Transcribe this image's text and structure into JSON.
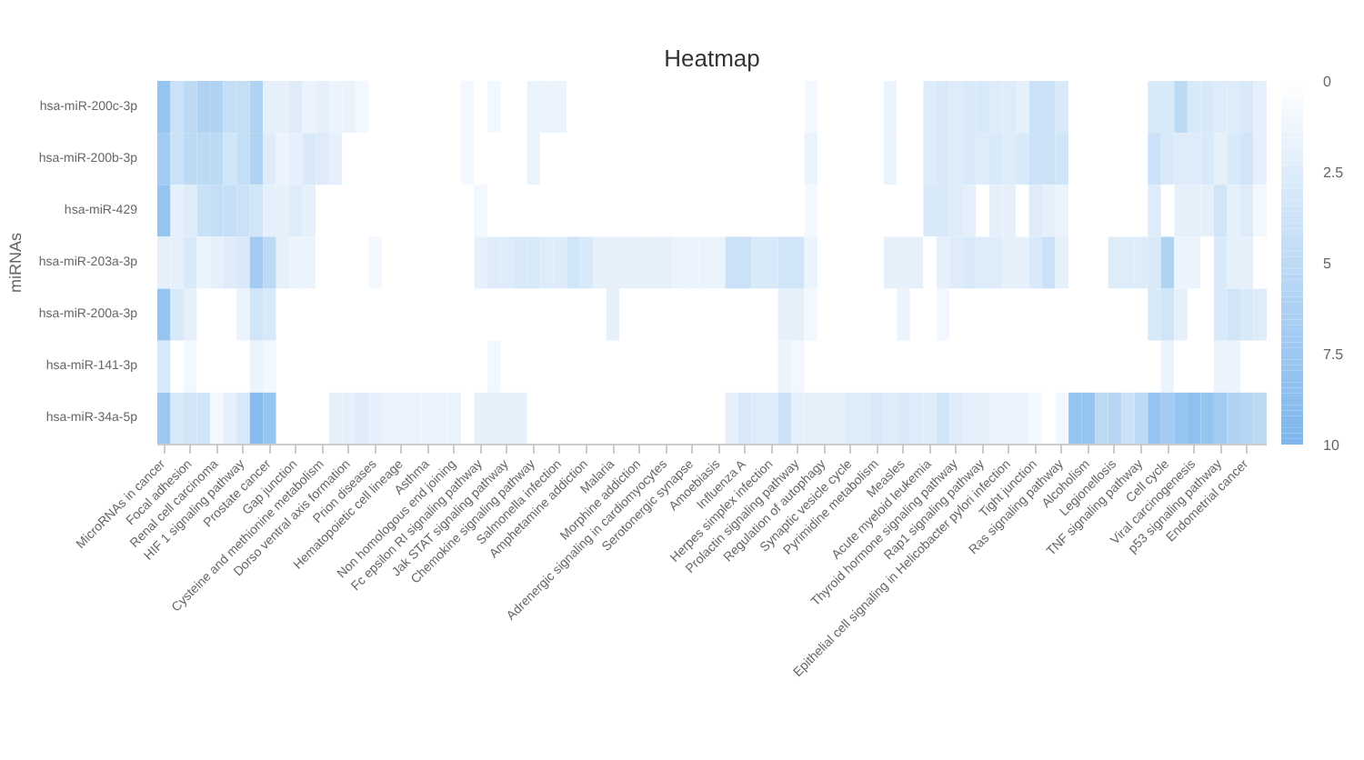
{
  "chart_data": {
    "type": "heatmap",
    "title": "Heatmap",
    "ylabel": "miRNAs",
    "categories": [
      "MicroRNAs in cancer",
      null,
      "Focal adhesion",
      null,
      "Renal cell carcinoma",
      null,
      "HIF 1 signaling pathway",
      null,
      "Prostate cancer",
      null,
      "Gap junction",
      null,
      "Cysteine and methionine metabolism",
      null,
      "Dorso ventral axis formation",
      null,
      "Prion diseases",
      null,
      "Hematopoietic cell lineage",
      null,
      "Asthma",
      null,
      "Non homologous end joining",
      null,
      "Fc epsilon RI signaling pathway",
      null,
      "Jak STAT signaling pathway",
      null,
      "Chemokine signaling pathway",
      null,
      "Salmonella infection",
      null,
      "Amphetamine addiction",
      null,
      "Malaria",
      null,
      "Morphine addiction",
      null,
      "Adrenergic signaling in cardiomyocytes",
      null,
      "Serotonergic synapse",
      null,
      "Amoebiasis",
      null,
      "Influenza A",
      null,
      "Herpes simplex infection",
      null,
      "Prolactin signaling pathway",
      null,
      "Regulation of autophagy",
      null,
      "Synaptic vesicle cycle",
      null,
      "Pyrimidine metabolism",
      null,
      "Measles",
      null,
      "Acute myeloid leukemia",
      null,
      "Thyroid hormone signaling pathway",
      null,
      "Rap1 signaling pathway",
      null,
      "Epithelial cell signaling in Helicobacter pylori infection",
      null,
      "Tight junction",
      null,
      "Ras signaling pathway",
      null,
      "Alcoholism",
      null,
      "Legionellosis",
      null,
      "TNF signaling pathway",
      null,
      "Cell cycle",
      null,
      "Viral carcinogenesis",
      null,
      "p53 signaling pathway",
      null,
      "Endometrial cancer",
      null
    ],
    "y_categories": [
      "hsa-miR-200c-3p",
      "hsa-miR-200b-3p",
      "hsa-miR-429",
      "hsa-miR-203a-3p",
      "hsa-miR-200a-3p",
      "hsa-miR-141-3p",
      "hsa-miR-34a-5p"
    ],
    "colors": [
      "#ffffff",
      "#7cb5ec"
    ],
    "clim": [
      0,
      10
    ],
    "cticks": [
      0,
      2.5,
      5,
      7.5,
      10
    ],
    "cells": [
      [
        8,
        4,
        5,
        6,
        6,
        4.5,
        4.5,
        6,
        2,
        2,
        2.5,
        1.5,
        2,
        1.5,
        1.5,
        1,
        0,
        0,
        0,
        0,
        0,
        0,
        0,
        1,
        0,
        1,
        0,
        0,
        1.5,
        1.5,
        1.5,
        0,
        0,
        0,
        0,
        0,
        0,
        0,
        0,
        0,
        0,
        0,
        0,
        0,
        0,
        0,
        0,
        0,
        0,
        1,
        0,
        0,
        0,
        0,
        0,
        1.5,
        0,
        0,
        2.5,
        3,
        2.5,
        3,
        3,
        2.5,
        2.5,
        2,
        4,
        4,
        3,
        0,
        0,
        0,
        0,
        0,
        0,
        3,
        3,
        5,
        3,
        3,
        2.5,
        2.5,
        3,
        2
      ],
      [
        7,
        4,
        5,
        5,
        5,
        3.5,
        4.5,
        6,
        2.5,
        1.5,
        2,
        3,
        2.5,
        2,
        0,
        0,
        0,
        0,
        0,
        0,
        0,
        0,
        0,
        1,
        0,
        0,
        0,
        0,
        1.5,
        0,
        0,
        0,
        0,
        0,
        0,
        0,
        0,
        0,
        0,
        0,
        0,
        0,
        0,
        0,
        0,
        0,
        0,
        0,
        0,
        1.5,
        0,
        0,
        0,
        0,
        0,
        1.5,
        0,
        0,
        2.5,
        3,
        2.5,
        3,
        2.5,
        3,
        2.5,
        3,
        4,
        4,
        3.5,
        0,
        0,
        0,
        0,
        0,
        0,
        4,
        3,
        2.5,
        2.5,
        3,
        2,
        3,
        3.5,
        2
      ],
      [
        8,
        2,
        2.5,
        4,
        4.5,
        4.5,
        4,
        3.5,
        2,
        2,
        2.5,
        2,
        0,
        0,
        0,
        0,
        0,
        0,
        0,
        0,
        0,
        0,
        0,
        0,
        1,
        0,
        0,
        0,
        0,
        0,
        0,
        0,
        0,
        0,
        0,
        0,
        0,
        0,
        0,
        0,
        0,
        0,
        0,
        0,
        0,
        0,
        0,
        0,
        0,
        1,
        0,
        0,
        0,
        0,
        0,
        0,
        0,
        0,
        3,
        3,
        2.5,
        2,
        0,
        2,
        2,
        0,
        2.5,
        2,
        1.5,
        0,
        0,
        0,
        0,
        0,
        0,
        2.5,
        0,
        2,
        2,
        2,
        3.5,
        2,
        2.5,
        1
      ],
      [
        2,
        2,
        3,
        1.5,
        2,
        2.5,
        3,
        7,
        5,
        2,
        1.5,
        1.5,
        0,
        0,
        0,
        0,
        1,
        0,
        0,
        0,
        0,
        0,
        0,
        0,
        2,
        2.5,
        2.5,
        3,
        3,
        2.5,
        2.5,
        3.5,
        3,
        2,
        2,
        2,
        2,
        2,
        2,
        1.5,
        1.5,
        1.5,
        1.5,
        4,
        4,
        3,
        3,
        3.5,
        3.5,
        1.5,
        0,
        0,
        0,
        0,
        0,
        2,
        2,
        2,
        0,
        2,
        2.5,
        3,
        2.5,
        2.5,
        2,
        2,
        3,
        4,
        2,
        0,
        0,
        0,
        2.5,
        2.5,
        2.5,
        3,
        6,
        1.5,
        1.5,
        0,
        3,
        2,
        2,
        0
      ],
      [
        8,
        3,
        2,
        0,
        0,
        0,
        1.5,
        3.5,
        3,
        0,
        0,
        0,
        0,
        0,
        0,
        0,
        0,
        0,
        0,
        0,
        0,
        0,
        0,
        0,
        0,
        0,
        0,
        0,
        0,
        0,
        0,
        0,
        0,
        0,
        2,
        0,
        0,
        0,
        0,
        0,
        0,
        0,
        0,
        0,
        0,
        0,
        0,
        2,
        2,
        1,
        0,
        0,
        0,
        0,
        0,
        0,
        1.5,
        0,
        0,
        1,
        0,
        0,
        0,
        0,
        0,
        0,
        0,
        0,
        0,
        0,
        0,
        0,
        0,
        0,
        0,
        3,
        3.5,
        2,
        0,
        0,
        3,
        3.5,
        3,
        2.5
      ],
      [
        3,
        0,
        1,
        0,
        0,
        0,
        0,
        1.5,
        1,
        0,
        0,
        0,
        0,
        0,
        0,
        0,
        0,
        0,
        0,
        0,
        0,
        0,
        0,
        0,
        0,
        1,
        0,
        0,
        0,
        0,
        0,
        0,
        0,
        0,
        0,
        0,
        0,
        0,
        0,
        0,
        0,
        0,
        0,
        0,
        0,
        0,
        0,
        1.5,
        1,
        0,
        0,
        0,
        0,
        0,
        0,
        0,
        0,
        0,
        0,
        0,
        0,
        0,
        0,
        0,
        0,
        0,
        0,
        0,
        0,
        0,
        0,
        0,
        0,
        0,
        0,
        0,
        1.5,
        0,
        0,
        0,
        1.5,
        1.5,
        0,
        0
      ],
      [
        7.5,
        3,
        3.5,
        3.5,
        1,
        2,
        3,
        9,
        8,
        0,
        0,
        0,
        0,
        2,
        2,
        2.5,
        2,
        1.5,
        1.5,
        1.5,
        1.5,
        1.5,
        1.5,
        0,
        2,
        2,
        2,
        2,
        0,
        0,
        0,
        0,
        0,
        0,
        0,
        0,
        0,
        0,
        0,
        0,
        0,
        0,
        0,
        2,
        3,
        2.5,
        2.5,
        4,
        2,
        2,
        2,
        2,
        2.5,
        2.5,
        3,
        2.5,
        3,
        2.5,
        2.5,
        3.5,
        2.5,
        2,
        2,
        1.5,
        1.5,
        1.5,
        1,
        0,
        1,
        8,
        8,
        5,
        5.5,
        4,
        5,
        8,
        7,
        8,
        8.5,
        8,
        7,
        6,
        5.5,
        5
      ]
    ]
  }
}
